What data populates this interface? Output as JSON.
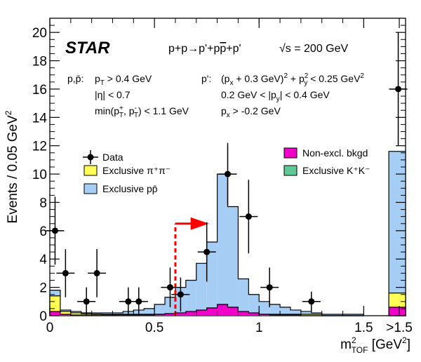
{
  "chart_data": {
    "type": "histogram",
    "title": "",
    "experiment_logo": "STAR",
    "reaction": {
      "prefix": "p+p→p'+p",
      "pbar": "p",
      "suffix": "+p'",
      "energy": "√s = 200 GeV"
    },
    "ylabel": "Events / 0.05 GeV",
    "ylabel_sup": "2",
    "xlabel_main": "m",
    "xlabel_sup": "2",
    "xlabel_sub": "TOF",
    "xlabel_unit": " [GeV",
    "xlabel_unit_sup": "2",
    "xlabel_close": "]",
    "ylim": [
      0,
      21
    ],
    "xlim": [
      0,
      1.7
    ],
    "x_ticks": [
      {
        "value": 0,
        "label": "0"
      },
      {
        "value": 0.5,
        "label": "0.5"
      },
      {
        "value": 1.0,
        "label": "1"
      },
      {
        "value": 1.5,
        "label": "1.5"
      },
      {
        "value": 1.67,
        "label": ">1.5"
      }
    ],
    "y_ticks": [
      0,
      2,
      4,
      6,
      8,
      10,
      12,
      14,
      16,
      18,
      20
    ],
    "cut_text_left": {
      "label": "p,p̄:",
      "lines": [
        "p_T > 0.4 GeV",
        "|η| < 0.7",
        "min(p⁺_T, p⁻_T) < 1.1 GeV"
      ]
    },
    "cut_text_right": {
      "label": "p':",
      "lines": [
        "(p_x + 0.3 GeV)² + p²_y < 0.25 GeV²",
        "0.2 GeV < |p_y| < 0.4 GeV",
        "p_x > -0.2 GeV"
      ]
    },
    "legend": {
      "data": "Data",
      "pipi": "Exclusive π⁺π⁻",
      "ppbar": "Exclusive pp̄",
      "nonexcl": "Non-excl. bkgd",
      "kk": "Exclusive K⁺K⁻"
    },
    "colors": {
      "ppbar": "#a6cdf3",
      "pipi": "#ffff55",
      "nonexcl": "#f000c8",
      "kk": "#5fc896",
      "cut": "#ff0000"
    },
    "bin_edges": [
      0,
      0.05,
      0.1,
      0.15,
      0.2,
      0.25,
      0.3,
      0.35,
      0.4,
      0.45,
      0.5,
      0.55,
      0.6,
      0.65,
      0.7,
      0.75,
      0.8,
      0.85,
      0.9,
      0.95,
      1.0,
      1.05,
      1.1,
      1.15,
      1.2,
      1.25,
      1.3,
      1.35,
      1.4,
      1.45,
      1.5
    ],
    "series": [
      {
        "name": "Exclusive pp̄ (total)",
        "values": [
          1.8,
          0.4,
          0.3,
          0.2,
          0.2,
          0.2,
          0.2,
          0.3,
          0.4,
          0.5,
          0.8,
          1.3,
          2.0,
          2.5,
          3.7,
          5.2,
          10.0,
          7.7,
          2.6,
          1.5,
          1.0,
          0.8,
          0.6,
          0.4,
          0.3,
          0.2,
          0.1,
          0.1,
          0.1,
          0.1
        ]
      },
      {
        "name": "Exclusive π⁺π⁻",
        "values": [
          1.4,
          0.3,
          0.2,
          0.15,
          0.12,
          0.1,
          0.1,
          0.1,
          0.1,
          0.1,
          0.1,
          0.1,
          0.1,
          0.1,
          0.1,
          0.1,
          0.1,
          0.1,
          0.1,
          0.1,
          0.1,
          0.1,
          0.1,
          0.1,
          0.1,
          0.1,
          0,
          0,
          0,
          0
        ]
      },
      {
        "name": "Non-excl. bkgd",
        "values": [
          0.3,
          0.1,
          0.05,
          0.05,
          0.05,
          0.05,
          0.05,
          0.05,
          0.05,
          0.05,
          0.1,
          0.15,
          0.2,
          0.3,
          0.4,
          0.55,
          0.8,
          0.6,
          0.3,
          0.2,
          0.1,
          0.05,
          0.05,
          0.05,
          0,
          0,
          0,
          0,
          0,
          0
        ]
      }
    ],
    "overflow_bin": {
      "x": [
        1.62,
        1.7
      ],
      "ppbar_total": 11.6,
      "pipi": 1.6,
      "nonexcl": 0.6
    },
    "data_points": [
      {
        "x": 0.025,
        "y": 6.0,
        "err": 2.4
      },
      {
        "x": 0.075,
        "y": 3.0,
        "err": 1.7
      },
      {
        "x": 0.175,
        "y": 1.0,
        "err": 1.0
      },
      {
        "x": 0.225,
        "y": 3.0,
        "err": 1.7
      },
      {
        "x": 0.375,
        "y": 1.0,
        "err": 1.0
      },
      {
        "x": 0.425,
        "y": 1.0,
        "err": 1.0
      },
      {
        "x": 0.575,
        "y": 2.0,
        "err": 1.4
      },
      {
        "x": 0.625,
        "y": 1.5,
        "err": 1.2
      },
      {
        "x": 0.75,
        "y": 4.5,
        "err": 2.1
      },
      {
        "x": 0.85,
        "y": 10.0,
        "err": 2.2
      },
      {
        "x": 0.95,
        "y": 7.0,
        "err": 2.6
      },
      {
        "x": 1.05,
        "y": 2.0,
        "err": 1.4
      },
      {
        "x": 1.25,
        "y": 1.0,
        "err": 0.7
      },
      {
        "x": 1.665,
        "y": 16.0,
        "err": 4.0
      }
    ],
    "cut_line": {
      "x": 0.6,
      "y_top": 6.5,
      "arrow_to": 0.76
    }
  }
}
